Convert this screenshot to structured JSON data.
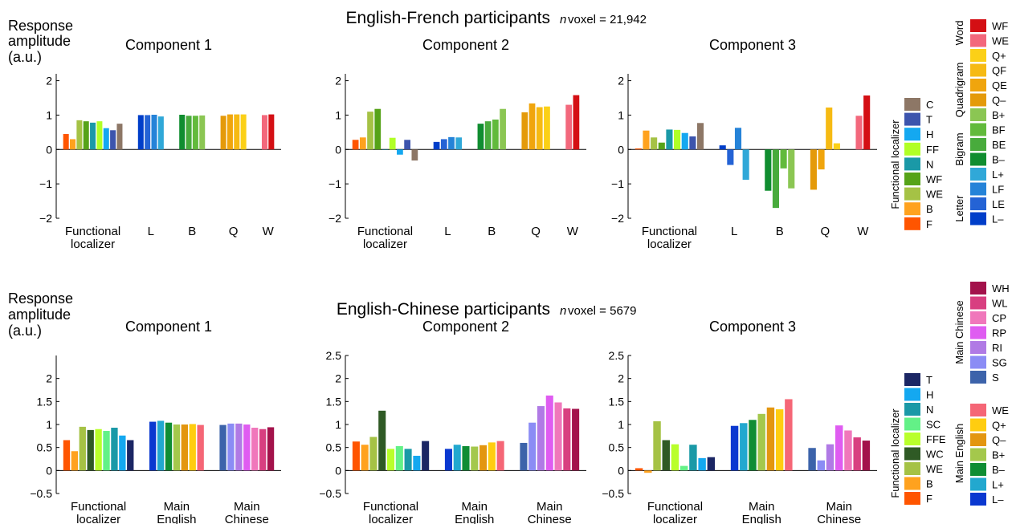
{
  "titles": {
    "top": {
      "text": "English-French participants",
      "n_italic": "n",
      "n_text": " voxel = 21,942"
    },
    "bottom": {
      "text": "English-Chinese participants",
      "n_italic": "n",
      "n_text": " voxel = 5679"
    },
    "ylabel_lines": [
      "Response",
      "amplitude",
      "(a.u.)"
    ]
  },
  "colors": {
    "F": "#ff5500",
    "B": "#ffa21e",
    "WE": "#a5c245",
    "WF": "#56a318",
    "N": "#1a99a7",
    "FF": "#b1ff26",
    "H": "#14a8f0",
    "T": "#3c54ad",
    "C": "#8d7766",
    "L-": "#003ec9",
    "LE": "#2463d5",
    "LF": "#2583d8",
    "L+": "#30a8d8",
    "B-": "#108d30",
    "BE": "#48ab3c",
    "BF": "#62ba3c",
    "B+": "#8bc653",
    "Q-": "#e49a0a",
    "QE": "#f0a50d",
    "QF": "#f6ba13",
    "Q+": "#fbd017",
    "WEw": "#f3687c",
    "WFw": "#d40f14",
    "WC": "#2f5a25",
    "FFE": "#b9ff2b",
    "SC": "#63f187",
    "Tc": "#1b2664",
    "Q+c": "#ffcd10",
    "Q-c": "#e39610",
    "B+c": "#a4c84c",
    "B-c": "#0f8d34",
    "L+c": "#22a8cf",
    "L-c": "#0a38d0",
    "WEc": "#f56676",
    "S": "#3c63aa",
    "SG": "#8b8cf5",
    "RI": "#b07ae5",
    "RP": "#df5cf1",
    "CP": "#f077bb",
    "WL": "#d83f80",
    "WH": "#a3124b"
  },
  "chart_data": [
    {
      "type": "bar",
      "row": "English-French participants",
      "title": "Component 1",
      "ylim": [
        -2,
        2.2
      ],
      "yticks": [
        -2,
        -1,
        0,
        1,
        2
      ],
      "ytick_labels": [
        "−2",
        "−1",
        "0",
        "1",
        "2"
      ],
      "xtick_labels": [
        "Functional\nlocalizer",
        "L",
        "B",
        "Q",
        "W"
      ],
      "groups": [
        {
          "keys": [
            "F",
            "B",
            "WE",
            "WF",
            "N",
            "FF",
            "H",
            "T",
            "C"
          ],
          "values": [
            0.45,
            0.3,
            0.85,
            0.82,
            0.78,
            0.82,
            0.62,
            0.56,
            0.75
          ]
        },
        {
          "keys": [
            "L-",
            "LE",
            "LF",
            "L+"
          ],
          "values": [
            1.0,
            1.0,
            1.01,
            0.96
          ]
        },
        {
          "keys": [
            "B-",
            "BE",
            "BF",
            "B+"
          ],
          "values": [
            1.01,
            0.98,
            0.98,
            0.99
          ]
        },
        {
          "keys": [
            "Q-",
            "QE",
            "QF",
            "Q+"
          ],
          "values": [
            0.98,
            1.02,
            1.02,
            1.02
          ]
        },
        {
          "keys": [
            "WEw",
            "WFw"
          ],
          "values": [
            1.0,
            1.02
          ]
        }
      ]
    },
    {
      "type": "bar",
      "row": "English-French participants",
      "title": "Component 2",
      "ylim": [
        -2,
        2.2
      ],
      "yticks": [
        -2,
        -1,
        0,
        1,
        2
      ],
      "ytick_labels": [
        "−2",
        "−1",
        "0",
        "1",
        "2"
      ],
      "xtick_labels": [
        "Functional\nlocalizer",
        "L",
        "B",
        "Q",
        "W"
      ],
      "groups": [
        {
          "keys": [
            "F",
            "B",
            "WE",
            "WF",
            "N",
            "FF",
            "H",
            "T",
            "C"
          ],
          "values": [
            0.28,
            0.35,
            1.1,
            1.18,
            0.0,
            0.34,
            -0.15,
            0.28,
            -0.32
          ]
        },
        {
          "keys": [
            "L-",
            "LE",
            "LF",
            "L+"
          ],
          "values": [
            0.22,
            0.3,
            0.36,
            0.35
          ]
        },
        {
          "keys": [
            "B-",
            "BE",
            "BF",
            "B+"
          ],
          "values": [
            0.75,
            0.82,
            0.87,
            1.18
          ]
        },
        {
          "keys": [
            "Q-",
            "QE",
            "QF",
            "Q+"
          ],
          "values": [
            1.08,
            1.34,
            1.23,
            1.25
          ]
        },
        {
          "keys": [
            "WEw",
            "WFw"
          ],
          "values": [
            1.3,
            1.58
          ]
        }
      ]
    },
    {
      "type": "bar",
      "row": "English-French participants",
      "title": "Component 3",
      "ylim": [
        -2,
        2.2
      ],
      "yticks": [
        -2,
        -1,
        0,
        1,
        2
      ],
      "ytick_labels": [
        "−2",
        "−1",
        "0",
        "1",
        "2"
      ],
      "xtick_labels": [
        "Functional\nlocalizer",
        "L",
        "B",
        "Q",
        "W"
      ],
      "groups": [
        {
          "keys": [
            "F",
            "B",
            "WE",
            "WF",
            "N",
            "FF",
            "H",
            "T",
            "C"
          ],
          "values": [
            0.03,
            0.55,
            0.35,
            0.2,
            0.58,
            0.57,
            0.48,
            0.38,
            0.77
          ]
        },
        {
          "keys": [
            "L-",
            "LE",
            "LF",
            "L+"
          ],
          "values": [
            0.12,
            -0.45,
            0.63,
            -0.88
          ]
        },
        {
          "keys": [
            "B-",
            "BE",
            "BF",
            "B+"
          ],
          "values": [
            -1.2,
            -1.7,
            -0.55,
            -1.13
          ]
        },
        {
          "keys": [
            "Q-",
            "QE",
            "QF",
            "Q+"
          ],
          "values": [
            -1.17,
            -0.58,
            1.22,
            0.18
          ]
        },
        {
          "keys": [
            "WEw",
            "WFw"
          ],
          "values": [
            0.98,
            1.57
          ]
        }
      ]
    },
    {
      "type": "bar",
      "row": "English-Chinese participants",
      "title": "Component 1",
      "ylim": [
        -0.5,
        2.5
      ],
      "yticks": [
        -0.5,
        0,
        0.5,
        1,
        1.5,
        2
      ],
      "ytick_labels": [
        "−0.5",
        "0",
        "0.5",
        "1",
        "1.5",
        "2"
      ],
      "xtick_labels": [
        "Functional\nlocalizer",
        "Main\nEnglish",
        "Main\nChinese"
      ],
      "groups": [
        {
          "keys": [
            "F",
            "B",
            "WE",
            "WC",
            "FFE",
            "SC",
            "N",
            "H",
            "Tc"
          ],
          "values": [
            0.66,
            0.42,
            0.95,
            0.88,
            0.9,
            0.86,
            0.93,
            0.76,
            0.66
          ]
        },
        {
          "keys": [
            "L-c",
            "L+c",
            "B-c",
            "B+c",
            "Q-c",
            "Q+c",
            "WEc"
          ],
          "values": [
            1.06,
            1.08,
            1.04,
            1.0,
            1.0,
            1.01,
            0.99
          ]
        },
        {
          "keys": [
            "S",
            "SG",
            "RI",
            "RP",
            "CP",
            "WL",
            "WH"
          ],
          "values": [
            0.99,
            1.02,
            1.02,
            1.0,
            0.93,
            0.9,
            0.94
          ]
        }
      ]
    },
    {
      "type": "bar",
      "row": "English-Chinese participants",
      "title": "Component 2",
      "ylim": [
        -0.5,
        2.5
      ],
      "yticks": [
        -0.5,
        0,
        0.5,
        1,
        1.5,
        2,
        2.5
      ],
      "ytick_labels": [
        "−0.5",
        "0",
        "0.5",
        "1",
        "1.5",
        "2",
        "2.5"
      ],
      "xtick_labels": [
        "Functional\nlocalizer",
        "Main\nEnglish",
        "Main\nChinese"
      ],
      "groups": [
        {
          "keys": [
            "F",
            "B",
            "WE",
            "WC",
            "FFE",
            "SC",
            "N",
            "H",
            "Tc"
          ],
          "values": [
            0.63,
            0.56,
            0.73,
            1.3,
            0.47,
            0.53,
            0.47,
            0.32,
            0.64
          ]
        },
        {
          "keys": [
            "L-c",
            "L+c",
            "B-c",
            "B+c",
            "Q-c",
            "Q+c",
            "WEc"
          ],
          "values": [
            0.47,
            0.56,
            0.53,
            0.52,
            0.55,
            0.61,
            0.64
          ]
        },
        {
          "keys": [
            "S",
            "SG",
            "RI",
            "RP",
            "CP",
            "WL",
            "WH"
          ],
          "values": [
            0.6,
            1.04,
            1.4,
            1.63,
            1.48,
            1.35,
            1.34
          ]
        }
      ]
    },
    {
      "type": "bar",
      "row": "English-Chinese participants",
      "title": "Component 3",
      "ylim": [
        -0.5,
        2.5
      ],
      "yticks": [
        -0.5,
        0,
        0.5,
        1,
        1.5,
        2,
        2.5
      ],
      "ytick_labels": [
        "−0.5",
        "0",
        "0.5",
        "1",
        "1.5",
        "2",
        "2.5"
      ],
      "xtick_labels": [
        "Functional\nlocalizer",
        "Main\nEnglish",
        "Main\nChinese"
      ],
      "groups": [
        {
          "keys": [
            "F",
            "B",
            "WE",
            "WC",
            "FFE",
            "SC",
            "N",
            "H",
            "Tc"
          ],
          "values": [
            0.05,
            -0.05,
            1.07,
            0.66,
            0.57,
            0.1,
            0.56,
            0.27,
            0.29
          ]
        },
        {
          "keys": [
            "L-c",
            "L+c",
            "B-c",
            "B+c",
            "Q-c",
            "Q+c",
            "WEc"
          ],
          "values": [
            0.97,
            1.03,
            1.1,
            1.23,
            1.37,
            1.33,
            1.55
          ]
        },
        {
          "keys": [
            "S",
            "SG",
            "RI",
            "RP",
            "CP",
            "WL",
            "WH"
          ],
          "values": [
            0.49,
            0.22,
            0.57,
            0.98,
            0.87,
            0.72,
            0.65
          ]
        }
      ]
    }
  ],
  "legends": {
    "top_functional": {
      "title": "Functional localizer",
      "items": [
        {
          "label": "C",
          "key": "C"
        },
        {
          "label": "T",
          "key": "T"
        },
        {
          "label": "H",
          "key": "H"
        },
        {
          "label": "FF",
          "key": "FF"
        },
        {
          "label": "N",
          "key": "N"
        },
        {
          "label": "WF",
          "key": "WF"
        },
        {
          "label": "WE",
          "key": "WE"
        },
        {
          "label": "B",
          "key": "B"
        },
        {
          "label": "F",
          "key": "F"
        }
      ]
    },
    "top_stimuli": {
      "items": [
        {
          "label": "WF",
          "key": "WFw"
        },
        {
          "label": "WE",
          "key": "WEw"
        },
        {
          "label": "Q+",
          "key": "Q+"
        },
        {
          "label": "QF",
          "key": "QF"
        },
        {
          "label": "QE",
          "key": "QE"
        },
        {
          "label": "Q–",
          "key": "Q-"
        },
        {
          "label": "B+",
          "key": "B+"
        },
        {
          "label": "BF",
          "key": "BF"
        },
        {
          "label": "BE",
          "key": "BE"
        },
        {
          "label": "B–",
          "key": "B-"
        },
        {
          "label": "L+",
          "key": "L+"
        },
        {
          "label": "LF",
          "key": "LF"
        },
        {
          "label": "LE",
          "key": "LE"
        },
        {
          "label": "L–",
          "key": "L-"
        }
      ],
      "group_labels": [
        "Word",
        "Quadrigram",
        "Bigram",
        "Letter"
      ]
    },
    "bottom_functional": {
      "title": "Functional localizer",
      "items": [
        {
          "label": "T",
          "key": "Tc"
        },
        {
          "label": "H",
          "key": "H"
        },
        {
          "label": "N",
          "key": "N"
        },
        {
          "label": "SC",
          "key": "SC"
        },
        {
          "label": "FFE",
          "key": "FFE"
        },
        {
          "label": "WC",
          "key": "WC"
        },
        {
          "label": "WE",
          "key": "WE"
        },
        {
          "label": "B",
          "key": "B"
        },
        {
          "label": "F",
          "key": "F"
        }
      ]
    },
    "bottom_chinese": {
      "title": "Main Chinese",
      "items": [
        {
          "label": "WH",
          "key": "WH"
        },
        {
          "label": "WL",
          "key": "WL"
        },
        {
          "label": "CP",
          "key": "CP"
        },
        {
          "label": "RP",
          "key": "RP"
        },
        {
          "label": "RI",
          "key": "RI"
        },
        {
          "label": "SG",
          "key": "SG"
        },
        {
          "label": "S",
          "key": "S"
        }
      ]
    },
    "bottom_english": {
      "title": "Main English",
      "items": [
        {
          "label": "WE",
          "key": "WEc"
        },
        {
          "label": "Q+",
          "key": "Q+c"
        },
        {
          "label": "Q–",
          "key": "Q-c"
        },
        {
          "label": "B+",
          "key": "B+c"
        },
        {
          "label": "B–",
          "key": "B-c"
        },
        {
          "label": "L+",
          "key": "L+c"
        },
        {
          "label": "L–",
          "key": "L-c"
        }
      ]
    }
  }
}
